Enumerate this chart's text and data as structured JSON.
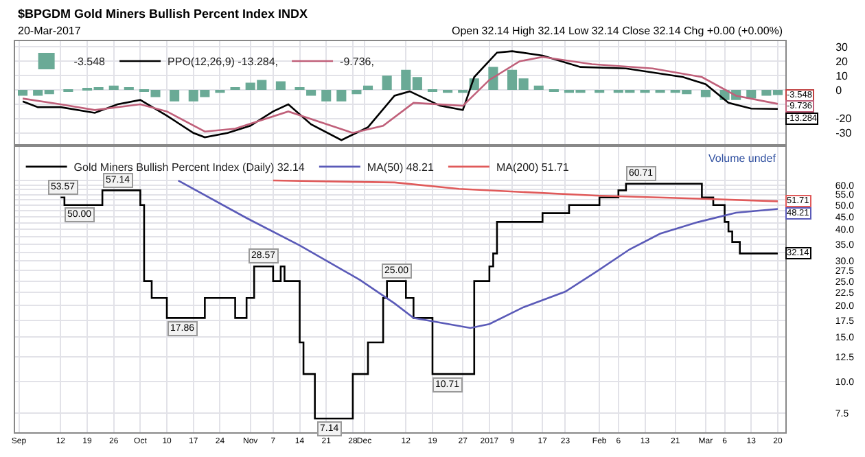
{
  "chart_data": [
    {
      "type": "line",
      "title": "$BPGDM Gold Miners Bullish Percent Index INDX",
      "subtitle": "20-Mar-2017",
      "annotations": [
        "Open 32.14 High 32.14 Low 32.14 Close 32.14 Chg +0.00 (+0.00%)",
        {
          "text": "-3.548",
          "x": "2017-03-20",
          "y": -3.548
        }
      ],
      "xlim": [
        "2016-08-31",
        "2017-03-22"
      ],
      "xticks": [
        {
          "value": "2016-09-01",
          "label": null
        },
        {
          "value": "2016-09-12",
          "label": null
        },
        {
          "value": "2016-09-19",
          "label": null
        },
        {
          "value": "2016-09-26",
          "label": null
        },
        {
          "value": "2016-10-03",
          "label": null
        },
        {
          "value": "2016-10-10",
          "label": null
        },
        {
          "value": "2016-10-17",
          "label": null
        },
        {
          "value": "2016-10-24",
          "label": null
        },
        {
          "value": "2016-11-01",
          "label": null
        },
        {
          "value": "2016-11-07",
          "label": null
        },
        {
          "value": "2016-11-14",
          "label": null
        },
        {
          "value": "2016-11-21",
          "label": null
        },
        {
          "value": "2016-11-28",
          "label": null
        },
        {
          "value": "2016-12-01",
          "label": null
        },
        {
          "value": "2016-12-12",
          "label": null
        },
        {
          "value": "2016-12-19",
          "label": null
        },
        {
          "value": "2016-12-27",
          "label": null
        },
        {
          "value": "2017-01-03",
          "label": null
        },
        {
          "value": "2017-01-09",
          "label": null
        },
        {
          "value": "2017-01-17",
          "label": null
        },
        {
          "value": "2017-01-23",
          "label": null
        },
        {
          "value": "2017-02-01",
          "label": null
        },
        {
          "value": "2017-02-06",
          "label": null
        },
        {
          "value": "2017-02-13",
          "label": null
        },
        {
          "value": "2017-02-21",
          "label": null
        },
        {
          "value": "2017-03-01",
          "label": null
        },
        {
          "value": "2017-03-06",
          "label": null
        },
        {
          "value": "2017-03-13",
          "label": null
        },
        {
          "value": "2017-03-20",
          "label": null
        }
      ],
      "ylim": [
        -38,
        34
      ],
      "yticks": [
        30,
        20,
        10,
        0,
        {
          "value": -10,
          "label": null
        },
        -20,
        -30
      ],
      "tick_labels": "y",
      "grid": true,
      "legend": "top left",
      "line_style": "solid",
      "series": [
        {
          "name": "-3.548",
          "type": "bar",
          "color": "#6aaa96",
          "x": [
            "2016-09-02",
            "2016-09-06",
            "2016-09-09",
            "2016-09-14",
            "2016-09-19",
            "2016-09-22",
            "2016-09-26",
            "2016-09-30",
            "2016-10-04",
            "2016-10-07",
            "2016-10-12",
            "2016-10-17",
            "2016-10-20",
            "2016-10-24",
            "2016-10-28",
            "2016-11-01",
            "2016-11-04",
            "2016-11-09",
            "2016-11-14",
            "2016-11-17",
            "2016-11-21",
            "2016-11-25",
            "2016-11-29",
            "2016-12-02",
            "2016-12-07",
            "2016-12-12",
            "2016-12-15",
            "2016-12-19",
            "2016-12-23",
            "2016-12-27",
            "2016-12-30",
            "2017-01-04",
            "2017-01-09",
            "2017-01-12",
            "2017-01-16",
            "2017-01-20",
            "2017-01-24",
            "2017-01-27",
            "2017-02-01",
            "2017-02-06",
            "2017-02-09",
            "2017-02-13",
            "2017-02-17",
            "2017-02-21",
            "2017-02-24",
            "2017-03-01",
            "2017-03-06",
            "2017-03-09",
            "2017-03-13",
            "2017-03-17",
            "2017-03-20"
          ],
          "values": [
            -4,
            -4,
            -3,
            -1,
            1,
            2,
            3,
            2,
            -1,
            -5,
            -8,
            -8,
            -5,
            -2,
            2,
            5,
            7,
            6,
            2,
            -4,
            -8,
            -8,
            -3,
            3,
            10,
            14,
            9,
            -1,
            -2,
            -2,
            8,
            16,
            14,
            8,
            3,
            -1,
            -2,
            -2,
            -2,
            -2,
            -2,
            -2,
            -2,
            -2,
            -3,
            -5,
            -7,
            -7,
            -6,
            -4,
            -3.548
          ]
        },
        {
          "name": "PPO(12,26,9) -13.284,",
          "color": "#000000",
          "x": [
            "2016-09-02",
            "2016-09-06",
            "2016-09-12",
            "2016-09-21",
            "2016-09-27",
            "2016-10-03",
            "2016-10-10",
            "2016-10-17",
            "2016-10-20",
            "2016-10-26",
            "2016-11-01",
            "2016-11-07",
            "2016-11-11",
            "2016-11-17",
            "2016-11-25",
            "2016-12-02",
            "2016-12-09",
            "2016-12-13",
            "2016-12-21",
            "2016-12-27",
            "2016-12-30",
            "2017-01-05",
            "2017-01-09",
            "2017-01-17",
            "2017-01-27",
            "2017-02-08",
            "2017-02-23",
            "2017-03-01",
            "2017-03-07",
            "2017-03-13",
            "2017-03-20"
          ],
          "values": [
            -8,
            -12,
            -12,
            -16,
            -10,
            -7,
            -18,
            -30,
            -33,
            -30,
            -25,
            -15,
            -10,
            -24,
            -35,
            -26,
            -4,
            -1,
            -11,
            -14,
            9,
            26,
            27,
            24,
            16,
            15,
            9,
            4,
            -9,
            -13,
            -13.284
          ],
          "value_labels": [
            null,
            null,
            null,
            null,
            null,
            null,
            null,
            null,
            null,
            null,
            null,
            null,
            null,
            null,
            null,
            null,
            null,
            null,
            null,
            null,
            null,
            null,
            null,
            null,
            null,
            null,
            null,
            null,
            null,
            null,
            "-13.284"
          ]
        },
        {
          "name": "-9.736,",
          "color": "#c0607a",
          "x": [
            "2016-09-02",
            "2016-09-12",
            "2016-09-21",
            "2016-10-03",
            "2016-10-10",
            "2016-10-20",
            "2016-10-28",
            "2016-11-11",
            "2016-11-28",
            "2016-12-06",
            "2016-12-14",
            "2016-12-27",
            "2017-01-03",
            "2017-01-11",
            "2017-01-17",
            "2017-01-30",
            "2017-02-15",
            "2017-02-28",
            "2017-03-09",
            "2017-03-20"
          ],
          "values": [
            -6,
            -10,
            -14,
            -10,
            -15,
            -29,
            -27,
            -15,
            -30,
            -25,
            -9,
            -11,
            7,
            20,
            23,
            18,
            15,
            9,
            -4,
            -9.736
          ],
          "value_labels": [
            null,
            null,
            null,
            null,
            null,
            null,
            null,
            null,
            null,
            null,
            null,
            null,
            null,
            null,
            null,
            null,
            null,
            null,
            null,
            "-9.736"
          ]
        }
      ]
    },
    {
      "type": "line",
      "log": true,
      "annotations": [
        "Volume undef"
      ],
      "xlim": [
        "2016-08-31",
        "2017-03-22"
      ],
      "xticks": [
        {
          "value": "2016-09-01",
          "label": "Sep"
        },
        {
          "value": "2016-09-12",
          "label": "12"
        },
        {
          "value": "2016-09-19",
          "label": "19"
        },
        {
          "value": "2016-09-26",
          "label": "26"
        },
        {
          "value": "2016-10-03",
          "label": "Oct"
        },
        {
          "value": "2016-10-10",
          "label": "10"
        },
        {
          "value": "2016-10-17",
          "label": "17"
        },
        {
          "value": "2016-10-24",
          "label": "24"
        },
        {
          "value": "2016-11-01",
          "label": "Nov"
        },
        {
          "value": "2016-11-07",
          "label": "7"
        },
        {
          "value": "2016-11-14",
          "label": "14"
        },
        {
          "value": "2016-11-21",
          "label": "21"
        },
        {
          "value": "2016-11-28",
          "label": "28"
        },
        {
          "value": "2016-12-01",
          "label": "Dec"
        },
        {
          "value": "2016-12-12",
          "label": "12"
        },
        {
          "value": "2016-12-19",
          "label": "19"
        },
        {
          "value": "2016-12-27",
          "label": "27"
        },
        {
          "value": "2017-01-03",
          "label": "2017"
        },
        {
          "value": "2017-01-09",
          "label": "9"
        },
        {
          "value": "2017-01-17",
          "label": "17"
        },
        {
          "value": "2017-01-23",
          "label": "23"
        },
        {
          "value": "2017-02-01",
          "label": "Feb"
        },
        {
          "value": "2017-02-06",
          "label": "6"
        },
        {
          "value": "2017-02-13",
          "label": "13"
        },
        {
          "value": "2017-02-21",
          "label": "21"
        },
        {
          "value": "2017-03-01",
          "label": "Mar"
        },
        {
          "value": "2017-03-06",
          "label": "6"
        },
        {
          "value": "2017-03-13",
          "label": "13"
        },
        {
          "value": "2017-03-20",
          "label": "20"
        }
      ],
      "ylim": [
        6.3,
        85
      ],
      "yticks": [
        {
          "value": 7.5,
          "label": "7.5"
        },
        {
          "value": 10,
          "label": "10.0"
        },
        {
          "value": 12.5,
          "label": "12.5"
        },
        {
          "value": 15,
          "label": "15.0"
        },
        {
          "value": 17.5,
          "label": "17.5"
        },
        {
          "value": 20,
          "label": "20.0"
        },
        {
          "value": 22.5,
          "label": "22.5"
        },
        {
          "value": 25,
          "label": "25.0"
        },
        {
          "value": 27.5,
          "label": "27.5"
        },
        {
          "value": 30,
          "label": "30.0"
        },
        {
          "value": 32.5,
          "label": null
        },
        {
          "value": 35,
          "label": "35.0"
        },
        {
          "value": 37.5,
          "label": null
        },
        {
          "value": 40,
          "label": "40.0"
        },
        {
          "value": 42.5,
          "label": null
        },
        {
          "value": 45,
          "label": "45.0"
        },
        {
          "value": 47.5,
          "label": null
        },
        {
          "value": 50,
          "label": "50.0"
        },
        {
          "value": 52.5,
          "label": null
        },
        {
          "value": 55,
          "label": "55.0"
        },
        {
          "value": 57.5,
          "label": null
        },
        {
          "value": 60,
          "label": "60.0"
        },
        {
          "value": 62.5,
          "label": null
        }
      ],
      "grid": true,
      "legend": "top left",
      "line_style": "solid",
      "series": [
        {
          "name": "Gold Miners Bullish Percent Index (Daily) 32.14",
          "type": "step",
          "color": "#000000",
          "x": [
            "2016-09-12",
            "2016-09-13",
            "2016-09-23",
            "2016-10-03",
            "2016-10-04",
            "2016-10-06",
            "2016-10-10",
            "2016-10-20",
            "2016-10-28",
            "2016-10-31",
            "2016-11-02",
            "2016-11-07",
            "2016-11-09",
            "2016-11-10",
            "2016-11-14",
            "2016-11-15",
            "2016-11-18",
            "2016-11-28",
            "2016-12-02",
            "2016-12-06",
            "2016-12-07",
            "2016-12-12",
            "2016-12-14",
            "2016-12-19",
            "2016-12-30",
            "2017-01-03",
            "2017-01-04",
            "2017-01-05",
            "2017-01-17",
            "2017-01-24",
            "2017-02-01",
            "2017-02-06",
            "2017-02-08",
            "2017-02-28",
            "2017-03-03",
            "2017-03-06",
            "2017-03-07",
            "2017-03-08",
            "2017-03-10",
            "2017-03-20"
          ],
          "values": [
            53.57,
            50.0,
            57.14,
            50.0,
            25.0,
            21.43,
            17.86,
            21.43,
            17.86,
            21.43,
            28.57,
            25.0,
            28.57,
            25.0,
            14.29,
            10.71,
            7.14,
            10.71,
            14.29,
            21.43,
            25.0,
            21.43,
            17.86,
            10.71,
            25.0,
            28.57,
            32.14,
            42.86,
            46.43,
            50.0,
            53.57,
            57.14,
            60.71,
            53.57,
            50.0,
            42.86,
            39.29,
            35.71,
            32.14,
            32.14
          ],
          "value_labels": [
            "53.57",
            "50.00",
            "57.14",
            null,
            null,
            null,
            "17.86",
            null,
            null,
            null,
            "28.57",
            null,
            null,
            null,
            null,
            null,
            "7.14",
            null,
            null,
            null,
            "25.00",
            null,
            null,
            "10.71",
            null,
            null,
            null,
            null,
            null,
            null,
            null,
            null,
            "60.71",
            null,
            null,
            null,
            null,
            null,
            null,
            "32.14"
          ]
        },
        {
          "name": "MA(50) 48.21",
          "color": "#5a5ab8",
          "x": [
            "2016-10-13",
            "2016-10-31",
            "2016-11-14",
            "2016-11-30",
            "2016-12-09",
            "2016-12-14",
            "2016-12-29",
            "2017-01-03",
            "2017-01-12",
            "2017-01-23",
            "2017-01-31",
            "2017-02-09",
            "2017-02-17",
            "2017-02-27",
            "2017-03-09",
            "2017-03-20"
          ],
          "values": [
            62.5,
            44.4,
            34.6,
            25.2,
            20.4,
            17.86,
            16.3,
            16.9,
            19.7,
            22.7,
            27.1,
            33.4,
            38.5,
            42.8,
            46.6,
            48.21
          ],
          "value_labels": [
            null,
            null,
            null,
            null,
            null,
            null,
            null,
            null,
            null,
            null,
            null,
            null,
            null,
            null,
            null,
            "48.21"
          ]
        },
        {
          "name": "MA(200) 51.71",
          "color": "#e05a5a",
          "x": [
            "2016-11-07",
            "2016-12-09",
            "2016-12-26",
            "2017-01-31",
            "2017-02-27",
            "2017-03-20"
          ],
          "values": [
            62.5,
            61.4,
            57.9,
            54.5,
            53.0,
            51.71
          ],
          "value_labels": [
            null,
            null,
            null,
            null,
            null,
            "51.71"
          ]
        }
      ]
    }
  ]
}
